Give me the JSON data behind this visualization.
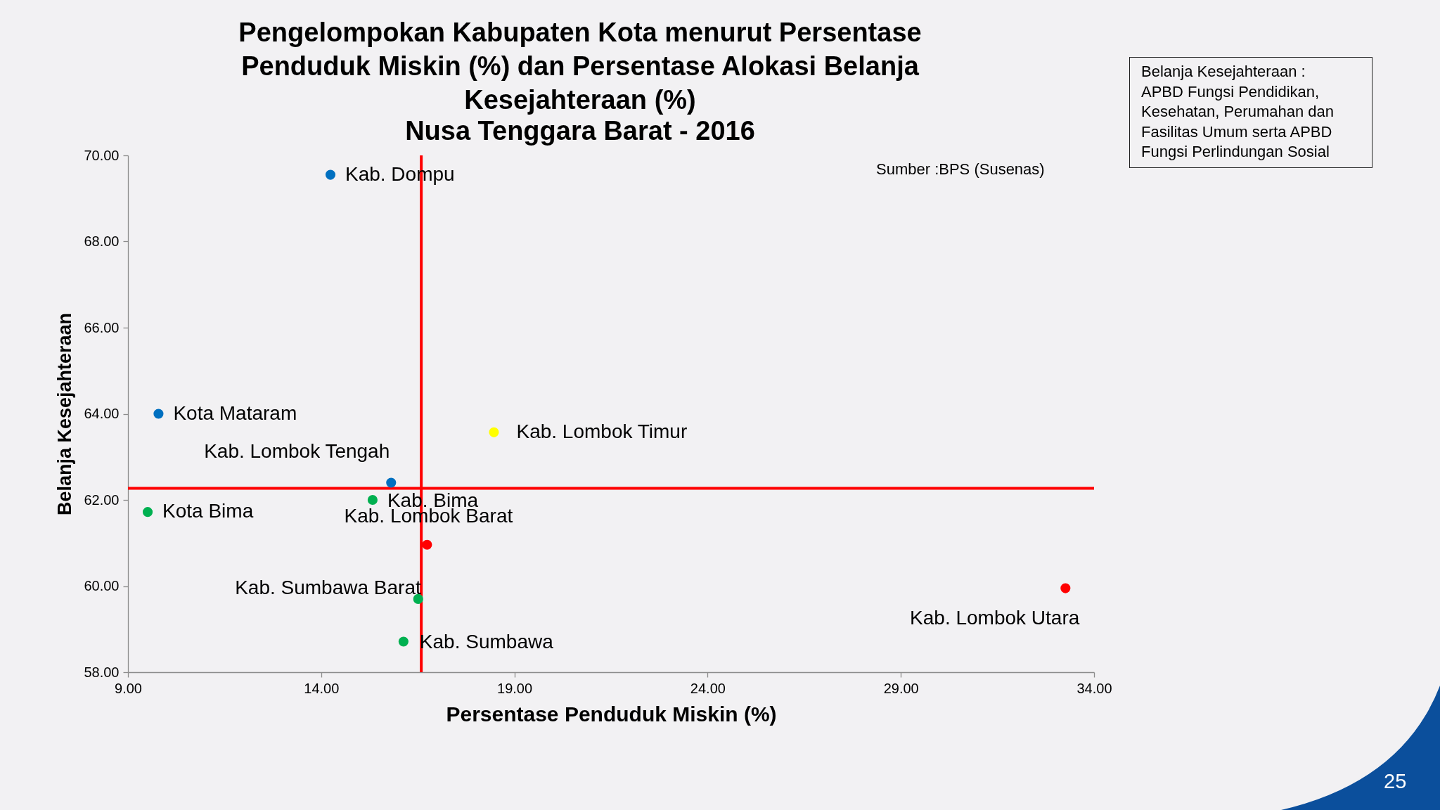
{
  "chart_data": {
    "type": "scatter",
    "title": "Pengelompokan Kabupaten Kota menurut Persentase Penduduk Miskin (%) dan Persentase Alokasi Belanja Kesejahteraan (%)",
    "subtitle": "Nusa Tenggara Barat - 2016",
    "xlabel": "Persentase Penduduk Miskin (%)",
    "ylabel": "Belanja Kesejahteraan",
    "x": [
      14.24,
      9.79,
      15.81,
      9.51,
      15.33,
      16.74,
      16.51,
      16.13,
      18.47,
      33.26
    ],
    "values": [
      69.55,
      64.0,
      62.4,
      61.72,
      62.0,
      60.96,
      59.7,
      58.71,
      63.57,
      59.95
    ],
    "colors": [
      "#0070c0",
      "#0070c0",
      "#0070c0",
      "#00b050",
      "#00b050",
      "#ff0000",
      "#00b050",
      "#00b050",
      "#ffff00",
      "#ff0000"
    ],
    "marker": "circle",
    "xlim": [
      9,
      34
    ],
    "xticks": [
      {
        "value": 9,
        "label": "9.00"
      },
      {
        "value": 14,
        "label": "14.00"
      },
      {
        "value": 19,
        "label": "19.00"
      },
      {
        "value": 24,
        "label": "24.00"
      },
      {
        "value": 29,
        "label": "29.00"
      },
      {
        "value": 34,
        "label": "34.00"
      }
    ],
    "ylim": [
      58,
      70
    ],
    "yticks": [
      {
        "value": 58,
        "label": "58.00"
      },
      {
        "value": 60,
        "label": "60.00"
      },
      {
        "value": 62,
        "label": "62.00"
      },
      {
        "value": 64,
        "label": "64.00"
      },
      {
        "value": 66,
        "label": "66.00"
      },
      {
        "value": 68,
        "label": "68.00"
      },
      {
        "value": 70,
        "label": "70.00"
      }
    ],
    "ref_lines": [
      {
        "axis": "x",
        "value": 16.59,
        "color": "#ff0000"
      },
      {
        "axis": "y",
        "value": 62.27,
        "color": "#ff0000"
      }
    ],
    "annotations": [
      {
        "text": "Kab. Dompu",
        "x": 14.24,
        "y": 69.55
      },
      {
        "text": "Kota Mataram",
        "x": 9.79,
        "y": 64.0
      },
      {
        "text": "Kab. Lombok Tengah",
        "x": 15.81,
        "y": 62.4
      },
      {
        "text": "Kota Bima",
        "x": 9.51,
        "y": 61.72
      },
      {
        "text": "Kab. Bima",
        "x": 15.33,
        "y": 62.0
      },
      {
        "text": "Kab. Lombok Barat",
        "x": 16.74,
        "y": 60.96
      },
      {
        "text": "Kab. Sumbawa Barat",
        "x": 16.51,
        "y": 59.7
      },
      {
        "text": "Kab. Sumbawa",
        "x": 16.13,
        "y": 58.71
      },
      {
        "text": "Kab. Lombok Timur",
        "x": 18.47,
        "y": 63.57
      },
      {
        "text": "Kab. Lombok Utara",
        "x": 33.26,
        "y": 59.95
      },
      "Sumber :BPS (Susenas)",
      "Belanja Kesejahteraan : APBD Fungsi Pendidikan, Kesehatan, Perumahan dan Fasilitas Umum serta APBD Fungsi Perlindungan Sosial",
      "25"
    ]
  }
}
